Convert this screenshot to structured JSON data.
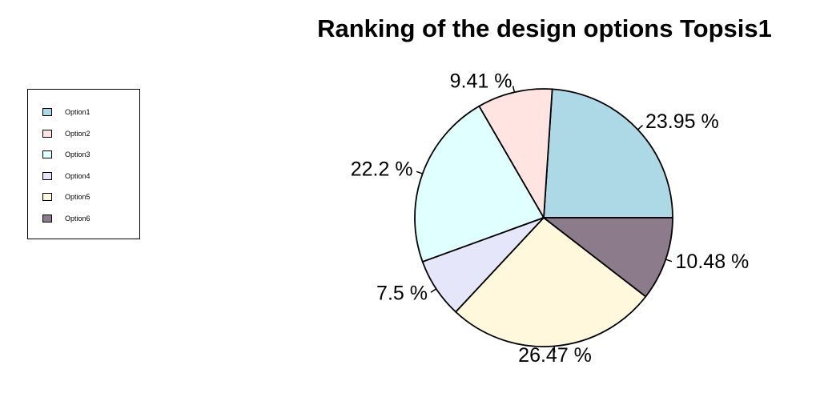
{
  "chart_data": {
    "type": "pie",
    "title": "Ranking of the design options Topsis1",
    "legend_position": "left",
    "slices": [
      {
        "name": "Option1",
        "value": 23.95,
        "label": "23.95 %",
        "color": "#ADD8E6"
      },
      {
        "name": "Option2",
        "value": 9.41,
        "label": "9.41 %",
        "color": "#FFE4E1"
      },
      {
        "name": "Option3",
        "value": 22.2,
        "label": "22.2 %",
        "color": "#E0FFFF"
      },
      {
        "name": "Option4",
        "value": 7.5,
        "label": "7.5 %",
        "color": "#E6E6FA"
      },
      {
        "name": "Option5",
        "value": 26.47,
        "label": "26.47 %",
        "color": "#FFF8DC"
      },
      {
        "name": "Option6",
        "value": 10.48,
        "label": "10.48 %",
        "color": "#8B7B8B"
      }
    ]
  }
}
